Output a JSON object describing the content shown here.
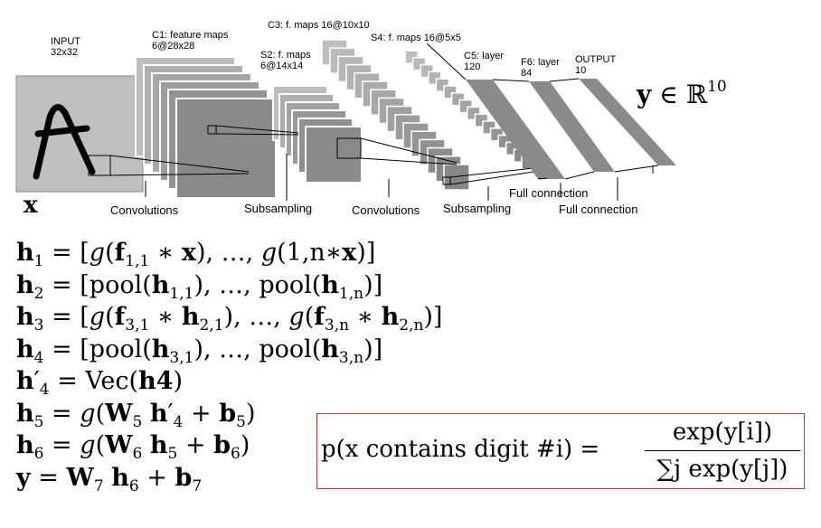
{
  "diagram": {
    "input_label": "INPUT\n32x32",
    "c1_label": "C1: feature maps\n6@28x28",
    "s2_label": "S2: f. maps\n6@14x14",
    "c3_label": "C3: f. maps 16@10x10",
    "s4_label": "S4: f. maps 16@5x5",
    "c5_label": "C5: layer\n120",
    "f6_label": "F6: layer\n84",
    "output_label": "OUTPUT\n10",
    "stages": [
      "Convolutions",
      "Subsampling",
      "Convolutions",
      "Subsampling",
      "Full connection",
      "Full connection"
    ],
    "x_label": "x",
    "y_label_main": "y",
    "y_label_rest": " ∈ ℝ",
    "y_label_sup": "10",
    "colors": {
      "input_gray": "#bfbfbf",
      "map_gray": "#8c8c8c",
      "border_red": "#c0392b"
    }
  },
  "equations": [
    "h1 = [g(f1,1 * x), ..., g(1,n*x)]",
    "h2 = [pool(h1,1), ..., pool(h1,n)]",
    "h3 = [g(f3,1 * h2,1), ..., g(f3,n * h2,n)]",
    "h4 = [pool(h3,1), ..., pool(h3,n)]",
    "h'4 = Vec(h4)",
    "h5 = g(W5 h'4 + b5)",
    "h6 = g(W6 h5 + b6)",
    "y = W7 h6 + b7"
  ],
  "probability": {
    "lhs": "p(x contains digit #i) =",
    "numerator": "exp(y[i])",
    "denominator": "∑j exp(y[j])"
  }
}
